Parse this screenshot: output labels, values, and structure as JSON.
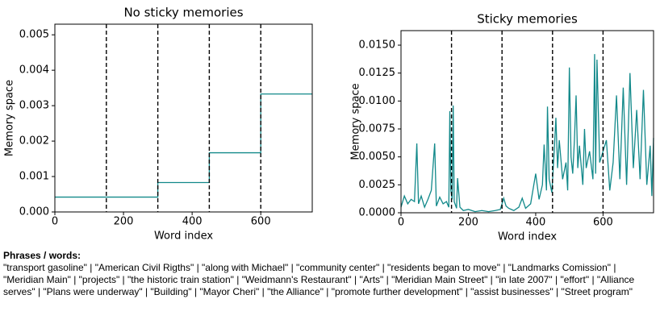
{
  "chart_data": [
    {
      "type": "line",
      "title": "No sticky memories",
      "xlabel": "Word index",
      "ylabel": "Memory space",
      "color": "#12898a",
      "x": [
        0,
        300,
        300,
        450,
        450,
        600,
        600,
        750
      ],
      "values": [
        0.00042,
        0.00042,
        0.00083,
        0.00083,
        0.00167,
        0.00167,
        0.00333,
        0.00333
      ],
      "vlines": [
        150,
        300,
        450,
        600
      ],
      "xlim": [
        0,
        750
      ],
      "xticks": [
        0,
        200,
        400,
        600
      ],
      "ylim": [
        0,
        0.0053
      ],
      "yticks": [
        {
          "value": 0,
          "label": "0.000"
        },
        {
          "value": 0.001,
          "label": "0.001"
        },
        {
          "value": 0.002,
          "label": "0.002"
        },
        {
          "value": 0.003,
          "label": "0.003"
        },
        {
          "value": 0.004,
          "label": "0.004"
        },
        {
          "value": 0.005,
          "label": "0.005"
        }
      ],
      "grid": false
    },
    {
      "type": "line",
      "title": "Sticky memories",
      "xlabel": "Word index",
      "ylabel": "Memory space",
      "color": "#12898a",
      "x": [
        0,
        10,
        20,
        30,
        40,
        47,
        52,
        60,
        70,
        80,
        90,
        100,
        105,
        115,
        125,
        135,
        142,
        145,
        148,
        152,
        155,
        158,
        165,
        168,
        175,
        185,
        200,
        220,
        240,
        260,
        280,
        295,
        300,
        305,
        312,
        320,
        335,
        350,
        360,
        370,
        385,
        400,
        410,
        420,
        425,
        432,
        435,
        440,
        448,
        455,
        460,
        465,
        470,
        480,
        490,
        495,
        500,
        505,
        510,
        515,
        520,
        525,
        530,
        540,
        545,
        550,
        560,
        570,
        575,
        578,
        582,
        590,
        600,
        610,
        620,
        630,
        640,
        650,
        660,
        670,
        680,
        690,
        700,
        710,
        720,
        730,
        740,
        745,
        750
      ],
      "values": [
        0.0005,
        0.0015,
        0.0008,
        0.0012,
        0.001,
        0.0062,
        0.0008,
        0.0015,
        0.0005,
        0.0012,
        0.002,
        0.0062,
        0.0006,
        0.0014,
        0.0008,
        0.001,
        0.0005,
        0.0091,
        0.002,
        0.0012,
        0.0096,
        0.001,
        0.0004,
        0.0031,
        0.0005,
        0.0002,
        0.0003,
        0.0001,
        0.0002,
        0.0001,
        0.0002,
        0.0003,
        0.0008,
        0.0013,
        0.0006,
        0.0004,
        0.0002,
        0.0005,
        0.0013,
        0.0004,
        0.0008,
        0.0035,
        0.0012,
        0.0025,
        0.0061,
        0.002,
        0.0095,
        0.003,
        0.0018,
        0.0055,
        0.0085,
        0.004,
        0.0065,
        0.003,
        0.0045,
        0.002,
        0.013,
        0.005,
        0.0035,
        0.0065,
        0.0105,
        0.004,
        0.006,
        0.0025,
        0.0075,
        0.004,
        0.0055,
        0.003,
        0.0142,
        0.0035,
        0.0137,
        0.0045,
        0.0055,
        0.0065,
        0.002,
        0.0045,
        0.0105,
        0.003,
        0.0112,
        0.0025,
        0.0125,
        0.004,
        0.0092,
        0.003,
        0.011,
        0.0025,
        0.006,
        0.0015,
        0.0067
      ],
      "vlines": [
        150,
        300,
        450,
        600
      ],
      "xlim": [
        0,
        750
      ],
      "xticks": [
        0,
        200,
        400,
        600
      ],
      "ylim": [
        0,
        0.0163
      ],
      "yticks": [
        {
          "value": 0,
          "label": "0.0000"
        },
        {
          "value": 0.0025,
          "label": "0.0025"
        },
        {
          "value": 0.005,
          "label": "0.0050"
        },
        {
          "value": 0.0075,
          "label": "0.0075"
        },
        {
          "value": 0.01,
          "label": "0.0100"
        },
        {
          "value": 0.0125,
          "label": "0.0125"
        },
        {
          "value": 0.015,
          "label": "0.0150"
        }
      ],
      "grid": false
    }
  ],
  "caption": {
    "title": "Phrases / words:",
    "text": "\"transport gasoline\"  |  \"American Civil Rigths\"  |  \"along with Michael\"  |  \"community center\"  |  \"residents began to move\" |  \"Landmarks Comission\"  |  \"Meridian Main\"  |  \"projects\"  |  \"the historic train station\"  |  \"Weidmann's Restaurant\"  |  \"Arts\"  |  \"Meridian Main Street\"  |  \"in late 2007\"  |  \"effort\"  |  \"Alliance serves\"  |  \"Plans were underway\"  |  \"Building\"  |  \"Mayor Cheri\"  |  \"the Alliance\"  |  \"promote further development\"  |  \"assist businesses\"  |      \"Street program\""
  }
}
